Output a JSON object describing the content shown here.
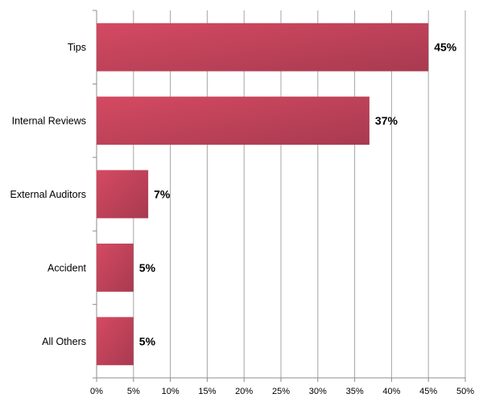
{
  "chart_data": {
    "type": "bar",
    "orientation": "horizontal",
    "categories": [
      "Tips",
      "Internal Reviews",
      "External Auditors",
      "Accident",
      "All Others"
    ],
    "values": [
      45,
      37,
      7,
      5,
      5
    ],
    "data_labels": [
      "45%",
      "37%",
      "7%",
      "5%",
      "5%"
    ],
    "xlim": [
      0,
      50
    ],
    "x_ticks": [
      0,
      5,
      10,
      15,
      20,
      25,
      30,
      35,
      40,
      45,
      50
    ],
    "x_tick_labels": [
      "0%",
      "5%",
      "10%",
      "15%",
      "20%",
      "25%",
      "30%",
      "35%",
      "40%",
      "45%",
      "50%"
    ],
    "title": "",
    "xlabel": "",
    "ylabel": "",
    "grid": "vertical",
    "legend": "none",
    "colors": {
      "bar_light": "#d44a62",
      "bar_dark": "#a83a50",
      "grid": "#a6a6a6",
      "axis": "#8c8c8c"
    }
  }
}
